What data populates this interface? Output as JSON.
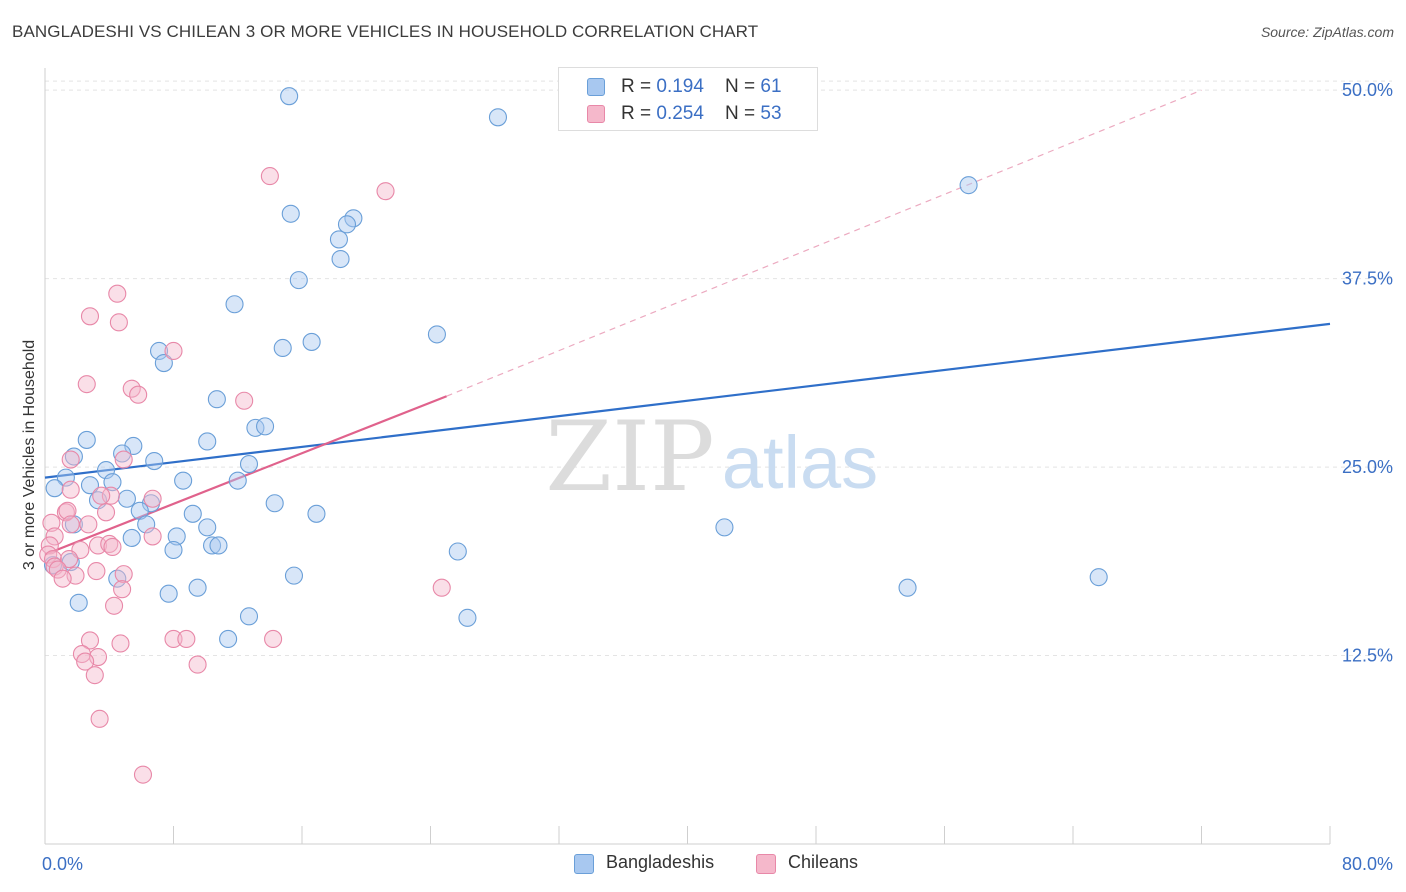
{
  "header": {
    "title": "BANGLADESHI VS CHILEAN 3 OR MORE VEHICLES IN HOUSEHOLD CORRELATION CHART",
    "source": "Source: ZipAtlas.com"
  },
  "legend": {
    "rows": [
      {
        "r_label": "R = ",
        "r_value": "0.194",
        "n_label": "N = ",
        "n_value": "61",
        "color": "#a8c8f0"
      },
      {
        "r_label": "R = ",
        "r_value": "0.254",
        "n_label": "N = ",
        "n_value": "53",
        "color": "#f5b8cb"
      }
    ]
  },
  "bottom_legend": {
    "items": [
      "Bangladeshis",
      "Chileans"
    ]
  },
  "watermark": {
    "zip": "ZIP",
    "atlas": "atlas"
  },
  "chart_data": {
    "type": "scatter",
    "title": "BANGLADESHI VS CHILEAN 3 OR MORE VEHICLES IN HOUSEHOLD CORRELATION CHART",
    "xlabel": "",
    "ylabel": "3 or more Vehicles in Household",
    "xlim": [
      0,
      80
    ],
    "ylim": [
      0,
      52
    ],
    "x_tick_labels": [
      "0.0%",
      "80.0%"
    ],
    "y_ticks": [
      12.5,
      25.0,
      37.5,
      50.0
    ],
    "y_tick_labels": [
      "12.5%",
      "25.0%",
      "37.5%",
      "50.0%"
    ],
    "grid": "horizontal dashed",
    "legend_position": "top-center",
    "colors": {
      "bangladeshis": "#6a9fd8",
      "chileans": "#e888a8",
      "blue_line": "#2f6fc9",
      "pink_line": "#e0628c",
      "tick_label": "#3b6fc4"
    },
    "series": [
      {
        "name": "Bangladeshis",
        "color": "#a8c8f0",
        "trend": {
          "x": [
            0,
            80
          ],
          "y": [
            24.3,
            34.5
          ]
        },
        "points": [
          [
            15.2,
            49.6
          ],
          [
            28.2,
            48.2
          ],
          [
            57.5,
            43.7
          ],
          [
            15.3,
            41.8
          ],
          [
            19.2,
            41.5
          ],
          [
            18.8,
            41.1
          ],
          [
            18.3,
            40.1
          ],
          [
            18.4,
            38.8
          ],
          [
            15.8,
            37.4
          ],
          [
            11.8,
            35.8
          ],
          [
            24.4,
            33.8
          ],
          [
            16.6,
            33.3
          ],
          [
            14.8,
            32.9
          ],
          [
            7.1,
            32.7
          ],
          [
            7.4,
            31.9
          ],
          [
            10.7,
            29.5
          ],
          [
            13.1,
            27.6
          ],
          [
            13.7,
            27.7
          ],
          [
            2.6,
            26.8
          ],
          [
            10.1,
            26.7
          ],
          [
            5.5,
            26.4
          ],
          [
            1.8,
            25.7
          ],
          [
            4.8,
            25.9
          ],
          [
            6.8,
            25.4
          ],
          [
            12.7,
            25.2
          ],
          [
            3.8,
            24.8
          ],
          [
            1.3,
            24.3
          ],
          [
            8.6,
            24.1
          ],
          [
            12.0,
            24.1
          ],
          [
            0.6,
            23.6
          ],
          [
            2.8,
            23.8
          ],
          [
            4.2,
            24.0
          ],
          [
            3.3,
            22.8
          ],
          [
            5.1,
            22.9
          ],
          [
            6.6,
            22.6
          ],
          [
            14.3,
            22.6
          ],
          [
            5.9,
            22.1
          ],
          [
            9.2,
            21.9
          ],
          [
            16.9,
            21.9
          ],
          [
            6.3,
            21.2
          ],
          [
            10.1,
            21.0
          ],
          [
            1.8,
            21.2
          ],
          [
            42.3,
            21.0
          ],
          [
            8.2,
            20.4
          ],
          [
            5.4,
            20.3
          ],
          [
            10.4,
            19.8
          ],
          [
            10.8,
            19.8
          ],
          [
            8.0,
            19.5
          ],
          [
            25.7,
            19.4
          ],
          [
            0.5,
            18.5
          ],
          [
            1.6,
            18.7
          ],
          [
            4.5,
            17.6
          ],
          [
            15.5,
            17.8
          ],
          [
            65.6,
            17.7
          ],
          [
            9.5,
            17.0
          ],
          [
            53.7,
            17.0
          ],
          [
            7.7,
            16.6
          ],
          [
            2.1,
            16.0
          ],
          [
            12.7,
            15.1
          ],
          [
            26.3,
            15.0
          ],
          [
            11.4,
            13.6
          ]
        ]
      },
      {
        "name": "Chileans",
        "color": "#f5b8cb",
        "trend": {
          "x": [
            0,
            25
          ],
          "y": [
            19.2,
            29.7
          ]
        },
        "trend_extension": {
          "x": [
            25,
            72
          ],
          "y": [
            29.7,
            50.0
          ]
        },
        "points": [
          [
            14.0,
            44.3
          ],
          [
            21.2,
            43.3
          ],
          [
            4.5,
            36.5
          ],
          [
            2.8,
            35.0
          ],
          [
            4.6,
            34.6
          ],
          [
            8.0,
            32.7
          ],
          [
            2.6,
            30.5
          ],
          [
            5.4,
            30.2
          ],
          [
            5.8,
            29.8
          ],
          [
            12.4,
            29.4
          ],
          [
            4.9,
            25.5
          ],
          [
            1.6,
            25.5
          ],
          [
            4.1,
            23.1
          ],
          [
            1.6,
            23.5
          ],
          [
            3.5,
            23.1
          ],
          [
            6.7,
            22.9
          ],
          [
            1.3,
            22.0
          ],
          [
            1.4,
            22.1
          ],
          [
            3.8,
            22.0
          ],
          [
            0.4,
            21.3
          ],
          [
            1.6,
            21.2
          ],
          [
            2.7,
            21.2
          ],
          [
            0.6,
            20.4
          ],
          [
            6.7,
            20.4
          ],
          [
            3.3,
            19.8
          ],
          [
            4.0,
            19.9
          ],
          [
            4.2,
            19.7
          ],
          [
            0.3,
            19.8
          ],
          [
            2.2,
            19.5
          ],
          [
            0.2,
            19.2
          ],
          [
            0.5,
            18.9
          ],
          [
            1.5,
            18.9
          ],
          [
            0.6,
            18.4
          ],
          [
            0.8,
            18.2
          ],
          [
            3.2,
            18.1
          ],
          [
            1.9,
            17.8
          ],
          [
            1.1,
            17.6
          ],
          [
            4.9,
            17.9
          ],
          [
            4.8,
            16.9
          ],
          [
            24.7,
            17.0
          ],
          [
            4.3,
            15.8
          ],
          [
            8.0,
            13.6
          ],
          [
            8.8,
            13.6
          ],
          [
            14.2,
            13.6
          ],
          [
            2.8,
            13.5
          ],
          [
            4.7,
            13.3
          ],
          [
            2.3,
            12.6
          ],
          [
            3.3,
            12.4
          ],
          [
            2.5,
            12.1
          ],
          [
            9.5,
            11.9
          ],
          [
            3.1,
            11.2
          ],
          [
            3.4,
            8.3
          ],
          [
            6.1,
            4.6
          ]
        ]
      }
    ]
  }
}
